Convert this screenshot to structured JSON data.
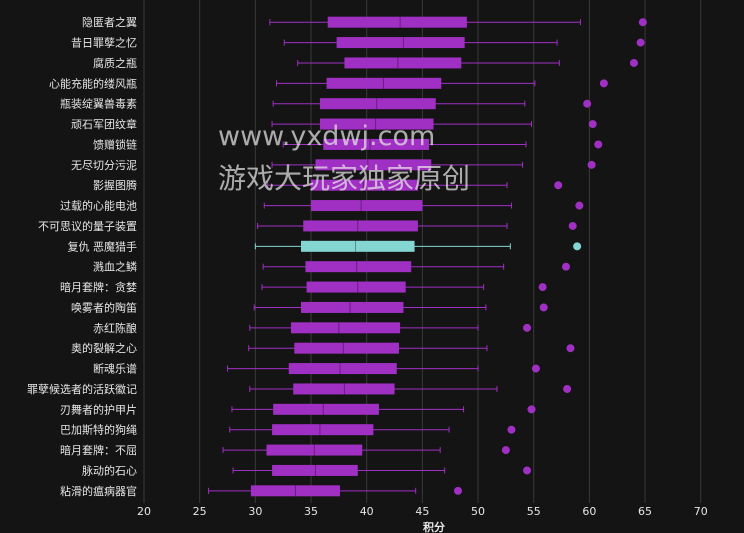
{
  "chart_data": {
    "type": "box",
    "orientation": "horizontal",
    "xlabel": "积分",
    "xlim": [
      20,
      72
    ],
    "xticks": [
      20,
      25,
      30,
      35,
      40,
      45,
      50,
      55,
      60,
      65,
      70
    ],
    "grid": true,
    "colors": {
      "box": "#a02fc3",
      "highlight": "#84d6d2",
      "background": "#141414",
      "grid": "#3a3a3a",
      "text": "#e6e6e6"
    },
    "categories": [
      "隐匿者之翼",
      "昔日罪孽之忆",
      "腐质之瓶",
      "心能充能的缕风瓶",
      "瓶装绽翼兽毒素",
      "顽石军团纹章",
      "馈赠锁链",
      "无尽切分污泥",
      "影握图腾",
      "过载的心能电池",
      "不可思议的量子装置",
      "复仇 恶魔猎手",
      "溅血之鳞",
      "暗月套牌：贪婪",
      "唤雾者的陶笛",
      "赤红陈酿",
      "奥的裂解之心",
      "断魂乐谱",
      "罪孽候选者的活跃徽记",
      "刃舞者的护甲片",
      "巴加斯特的狗绳",
      "暗月套牌：不屈",
      "脉动的石心",
      "粘滑的瘟病器官"
    ],
    "highlight_index": 11,
    "boxes": [
      {
        "min": 31.3,
        "q1": 36.5,
        "median": 43.0,
        "q3": 49.0,
        "max": 59.2,
        "outliers": [
          64.8
        ]
      },
      {
        "min": 32.6,
        "q1": 37.3,
        "median": 43.3,
        "q3": 48.8,
        "max": 57.1,
        "outliers": [
          64.6
        ]
      },
      {
        "min": 33.8,
        "q1": 38.0,
        "median": 42.8,
        "q3": 48.5,
        "max": 57.3,
        "outliers": [
          64.0
        ]
      },
      {
        "min": 31.9,
        "q1": 36.4,
        "median": 41.5,
        "q3": 46.7,
        "max": 55.1,
        "outliers": [
          61.3
        ]
      },
      {
        "min": 31.6,
        "q1": 35.8,
        "median": 40.9,
        "q3": 46.2,
        "max": 54.2,
        "outliers": [
          59.8
        ]
      },
      {
        "min": 31.5,
        "q1": 35.8,
        "median": 40.8,
        "q3": 46.0,
        "max": 54.8,
        "outliers": [
          60.3
        ]
      },
      {
        "min": 32.5,
        "q1": 36.1,
        "median": 40.3,
        "q3": 45.6,
        "max": 54.3,
        "outliers": [
          60.8
        ]
      },
      {
        "min": 31.5,
        "q1": 35.4,
        "median": 40.1,
        "q3": 45.8,
        "max": 54.0,
        "outliers": [
          60.2
        ]
      },
      {
        "min": 31.1,
        "q1": 35.0,
        "median": 39.7,
        "q3": 44.6,
        "max": 52.6,
        "outliers": [
          57.2
        ]
      },
      {
        "min": 30.8,
        "q1": 35.0,
        "median": 39.5,
        "q3": 45.0,
        "max": 53.0,
        "outliers": [
          59.1
        ]
      },
      {
        "min": 30.2,
        "q1": 34.3,
        "median": 39.2,
        "q3": 44.6,
        "max": 52.6,
        "outliers": [
          58.5
        ]
      },
      {
        "min": 30.0,
        "q1": 34.1,
        "median": 39.0,
        "q3": 44.3,
        "max": 52.9,
        "outliers": [
          58.9
        ]
      },
      {
        "min": 30.7,
        "q1": 34.5,
        "median": 39.1,
        "q3": 44.0,
        "max": 52.3,
        "outliers": [
          57.9
        ]
      },
      {
        "min": 30.6,
        "q1": 34.6,
        "median": 39.2,
        "q3": 43.5,
        "max": 50.5,
        "outliers": [
          55.8
        ]
      },
      {
        "min": 29.9,
        "q1": 34.1,
        "median": 38.5,
        "q3": 43.3,
        "max": 50.7,
        "outliers": [
          55.9
        ]
      },
      {
        "min": 29.5,
        "q1": 33.2,
        "median": 37.5,
        "q3": 43.0,
        "max": 50.0,
        "outliers": [
          54.4
        ]
      },
      {
        "min": 29.4,
        "q1": 33.5,
        "median": 37.9,
        "q3": 42.9,
        "max": 50.8,
        "outliers": [
          58.3
        ]
      },
      {
        "min": 27.5,
        "q1": 33.0,
        "median": 37.6,
        "q3": 42.7,
        "max": 50.0,
        "outliers": [
          55.2
        ]
      },
      {
        "min": 29.5,
        "q1": 33.4,
        "median": 38.0,
        "q3": 42.5,
        "max": 51.7,
        "outliers": [
          58.0
        ]
      },
      {
        "min": 27.9,
        "q1": 31.6,
        "median": 36.1,
        "q3": 41.1,
        "max": 48.7,
        "outliers": [
          54.8
        ]
      },
      {
        "min": 27.7,
        "q1": 31.5,
        "median": 35.8,
        "q3": 40.6,
        "max": 47.4,
        "outliers": [
          53.0
        ]
      },
      {
        "min": 27.1,
        "q1": 31.0,
        "median": 35.3,
        "q3": 39.6,
        "max": 46.6,
        "outliers": [
          52.5
        ]
      },
      {
        "min": 28.0,
        "q1": 31.5,
        "median": 35.4,
        "q3": 39.2,
        "max": 47.0,
        "outliers": [
          54.4
        ]
      },
      {
        "min": 25.8,
        "q1": 29.6,
        "median": 33.6,
        "q3": 37.6,
        "max": 44.4,
        "outliers": [
          48.2
        ]
      }
    ]
  },
  "watermark": {
    "line1": "www.yxdwj.com",
    "line2": "游戏大玩家独家原创"
  }
}
